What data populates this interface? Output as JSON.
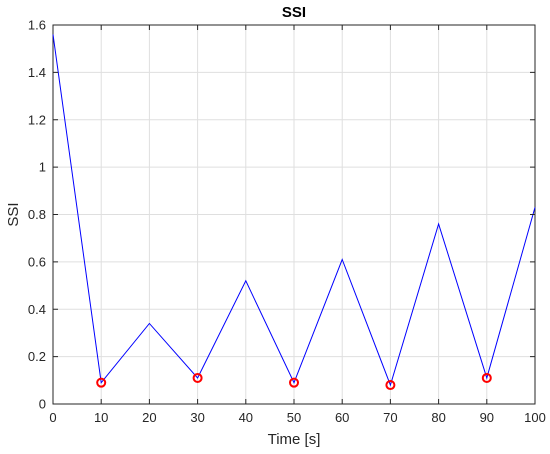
{
  "chart_data": {
    "type": "line",
    "title": "SSI",
    "xlabel": "Time [s]",
    "ylabel": "SSI",
    "xlim": [
      0,
      100
    ],
    "ylim": [
      0,
      1.6
    ],
    "xticks": [
      0,
      10,
      20,
      30,
      40,
      50,
      60,
      70,
      80,
      90,
      100
    ],
    "yticks": [
      0,
      0.2,
      0.4,
      0.6,
      0.8,
      1,
      1.2,
      1.4,
      1.6
    ],
    "xtick_labels": [
      "0",
      "10",
      "20",
      "30",
      "40",
      "50",
      "60",
      "70",
      "80",
      "90",
      "100"
    ],
    "ytick_labels": [
      "0",
      "0.2",
      "0.4",
      "0.6",
      "0.8",
      "1",
      "1.2",
      "1.4",
      "1.6"
    ],
    "grid": true,
    "series": [
      {
        "style": "line",
        "color": "#0000ff",
        "x": [
          0,
          10,
          20,
          30,
          40,
          50,
          60,
          70,
          80,
          90,
          100
        ],
        "y": [
          1.56,
          0.09,
          0.34,
          0.11,
          0.52,
          0.09,
          0.61,
          0.08,
          0.76,
          0.11,
          0.83
        ]
      },
      {
        "style": "markers",
        "marker": "circle",
        "color": "#ff0000",
        "x": [
          10,
          30,
          50,
          70,
          90
        ],
        "y": [
          0.09,
          0.11,
          0.09,
          0.08,
          0.11
        ]
      }
    ]
  }
}
